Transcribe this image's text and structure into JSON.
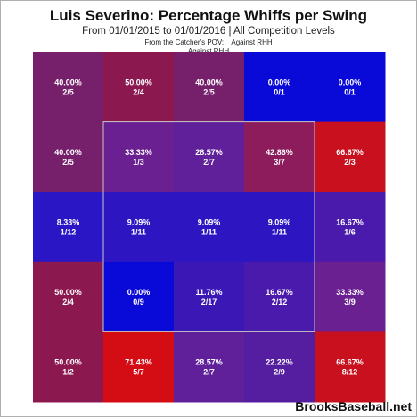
{
  "chart_data": {
    "type": "heatmap",
    "title": "Luis Severino: Percentage Whiffs per Swing",
    "subtitle": "From 01/01/2015 to 01/01/2016 | All Competition Levels",
    "notes": [
      "From the Catcher's POV:",
      "Against RHH",
      "Against RHH"
    ],
    "grid": {
      "rows": 5,
      "cols": 5,
      "strike_zone": {
        "row_start": 1,
        "row_end": 3,
        "col_start": 1,
        "col_end": 3
      }
    },
    "cells": [
      [
        {
          "pct": "40.00%",
          "ratio": "2/5",
          "value": 0.4
        },
        {
          "pct": "50.00%",
          "ratio": "2/4",
          "value": 0.5
        },
        {
          "pct": "40.00%",
          "ratio": "2/5",
          "value": 0.4
        },
        {
          "pct": "0.00%",
          "ratio": "0/1",
          "value": 0.0
        },
        {
          "pct": "0.00%",
          "ratio": "0/1",
          "value": 0.0
        }
      ],
      [
        {
          "pct": "40.00%",
          "ratio": "2/5",
          "value": 0.4
        },
        {
          "pct": "33.33%",
          "ratio": "1/3",
          "value": 0.3333
        },
        {
          "pct": "28.57%",
          "ratio": "2/7",
          "value": 0.2857
        },
        {
          "pct": "42.86%",
          "ratio": "3/7",
          "value": 0.4286
        },
        {
          "pct": "66.67%",
          "ratio": "2/3",
          "value": 0.6667
        }
      ],
      [
        {
          "pct": "8.33%",
          "ratio": "1/12",
          "value": 0.0833
        },
        {
          "pct": "9.09%",
          "ratio": "1/11",
          "value": 0.0909
        },
        {
          "pct": "9.09%",
          "ratio": "1/11",
          "value": 0.0909
        },
        {
          "pct": "9.09%",
          "ratio": "1/11",
          "value": 0.0909
        },
        {
          "pct": "16.67%",
          "ratio": "1/6",
          "value": 0.1667
        }
      ],
      [
        {
          "pct": "50.00%",
          "ratio": "2/4",
          "value": 0.5
        },
        {
          "pct": "0.00%",
          "ratio": "0/9",
          "value": 0.0
        },
        {
          "pct": "11.76%",
          "ratio": "2/17",
          "value": 0.1176
        },
        {
          "pct": "16.67%",
          "ratio": "2/12",
          "value": 0.1667
        },
        {
          "pct": "33.33%",
          "ratio": "3/9",
          "value": 0.3333
        }
      ],
      [
        {
          "pct": "50.00%",
          "ratio": "1/2",
          "value": 0.5
        },
        {
          "pct": "71.43%",
          "ratio": "5/7",
          "value": 0.7143
        },
        {
          "pct": "28.57%",
          "ratio": "2/7",
          "value": 0.2857
        },
        {
          "pct": "22.22%",
          "ratio": "2/9",
          "value": 0.2222
        },
        {
          "pct": "66.67%",
          "ratio": "8/12",
          "value": 0.6667
        }
      ]
    ]
  },
  "brand": "BrooksBaseball.net",
  "colors": {
    "0.0": "#0a0ad8",
    "0.0833": "#2a16c4",
    "0.0909": "#2d16c2",
    "0.1176": "#3b18b6",
    "0.1667": "#4a1aac",
    "0.2222": "#551ea0",
    "0.2857": "#60209a",
    "0.3333": "#6a2090",
    "0.4": "#76206c",
    "0.4286": "#8c1c5c",
    "0.5": "#8c1850",
    "0.6667": "#c8101e",
    "0.7143": "#d40c14",
    "zone_border": "#c8c8c8",
    "cell_text": "#ffffff"
  }
}
